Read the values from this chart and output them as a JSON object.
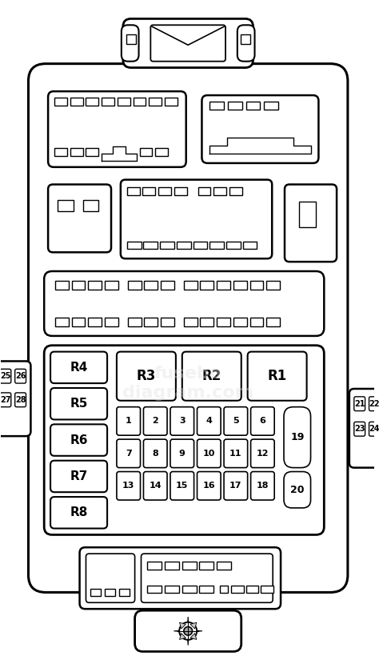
{
  "bg_color": "#ffffff",
  "line_color": "#000000",
  "fig_width": 4.74,
  "fig_height": 8.25,
  "relay_left": [
    "R4",
    "R5",
    "R6",
    "R7",
    "R8"
  ],
  "relay_top": [
    "R3",
    "R2",
    "R1"
  ],
  "fuses_row1": [
    "1",
    "2",
    "3",
    "4",
    "5",
    "6"
  ],
  "fuses_row2": [
    "7",
    "8",
    "9",
    "10",
    "11",
    "12"
  ],
  "fuses_row3": [
    "13",
    "14",
    "15",
    "16",
    "17",
    "18"
  ],
  "fuse19": "19",
  "fuse20": "20",
  "side_left": [
    [
      "25",
      "26"
    ],
    [
      "27",
      "28"
    ]
  ],
  "side_right": [
    [
      "21",
      "22"
    ],
    [
      "23",
      "24"
    ]
  ]
}
